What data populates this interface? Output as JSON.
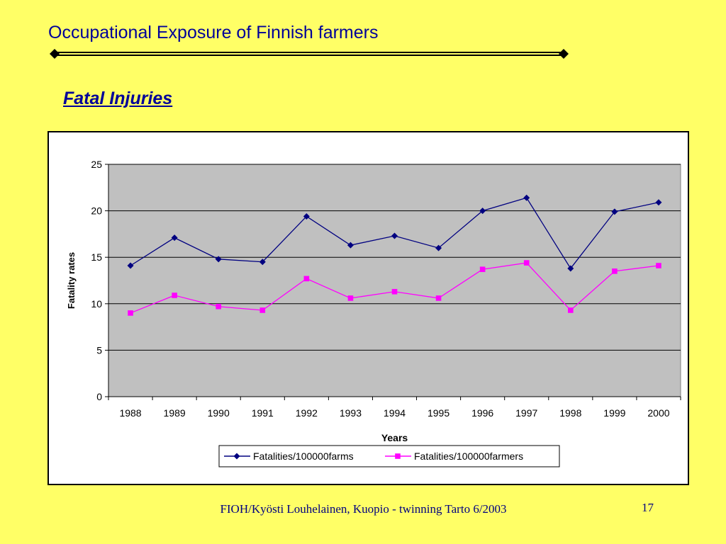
{
  "slide": {
    "title": "Occupational Exposure of Finnish farmers",
    "subtitle": "Fatal Injuries",
    "footer": "FIOH/Kyösti Louhelainen, Kuopio - twinning Tarto 6/2003",
    "page_number": "17"
  },
  "chart_data": {
    "type": "line",
    "title": "",
    "xlabel": "Years",
    "ylabel": "Fatality rates",
    "categories": [
      "1988",
      "1989",
      "1990",
      "1991",
      "1992",
      "1993",
      "1994",
      "1995",
      "1996",
      "1997",
      "1998",
      "1999",
      "2000"
    ],
    "ylim": [
      0,
      25
    ],
    "yticks": [
      0,
      5,
      10,
      15,
      20,
      25
    ],
    "grid": true,
    "plot_background": "#C0C0C0",
    "legend_position": "bottom",
    "series": [
      {
        "name": "Fatalities/100000farms",
        "color": "#000080",
        "marker": "diamond",
        "values": [
          14.1,
          17.1,
          14.8,
          14.5,
          19.4,
          16.3,
          17.3,
          16.0,
          20.0,
          21.4,
          13.8,
          19.9,
          20.9
        ]
      },
      {
        "name": "Fatalities/100000farmers",
        "color": "#FF00FF",
        "marker": "square",
        "values": [
          9.0,
          10.9,
          9.7,
          9.3,
          12.7,
          10.6,
          11.3,
          10.6,
          13.7,
          14.4,
          9.3,
          13.5,
          14.1
        ]
      }
    ]
  }
}
